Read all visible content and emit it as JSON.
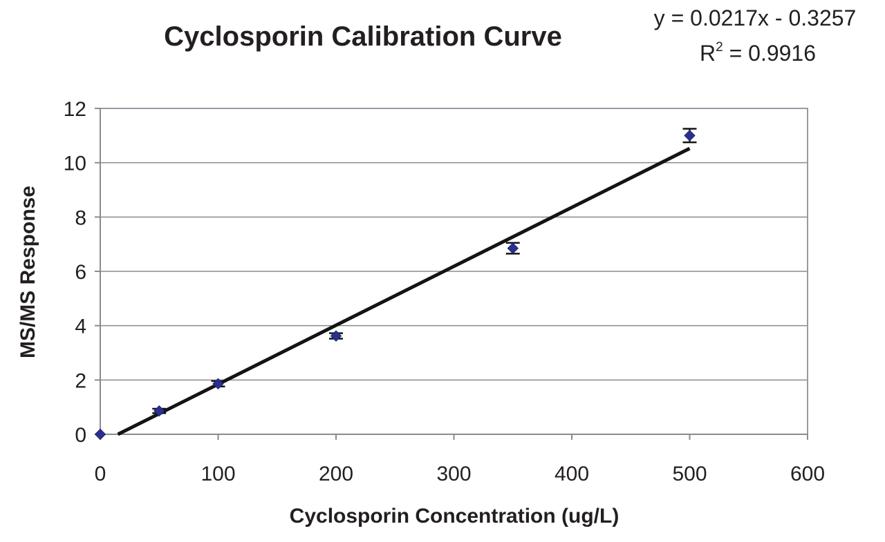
{
  "chart_data": {
    "type": "scatter",
    "title": "Cyclosporin Calibration Curve",
    "xlabel": "Cyclosporin Concentration (ug/L)",
    "ylabel": "MS/MS Response",
    "xlim": [
      0,
      600
    ],
    "ylim": [
      0,
      12
    ],
    "xticks": [
      0,
      100,
      200,
      300,
      400,
      500,
      600
    ],
    "yticks": [
      0,
      2,
      4,
      6,
      8,
      10,
      12
    ],
    "grid": "horizontal",
    "legend": "none",
    "series": [
      {
        "x": [
          0,
          50,
          100,
          200,
          350,
          500
        ],
        "y": [
          0,
          0.86,
          1.86,
          3.62,
          6.85,
          11.0
        ],
        "error": [
          0,
          0.08,
          0.1,
          0.1,
          0.2,
          0.25
        ],
        "marker": "diamond",
        "color": "#2b2f8f"
      }
    ],
    "trendline": {
      "type": "linear",
      "slope": 0.0217,
      "intercept": -0.3257,
      "x_range": [
        15,
        500
      ],
      "color": "#141414"
    },
    "annotations": {
      "equation": "y = 0.0217x - 0.3257",
      "r2_prefix": "R",
      "r2_sup": "2",
      "r2_value": " = 0.9916"
    }
  }
}
